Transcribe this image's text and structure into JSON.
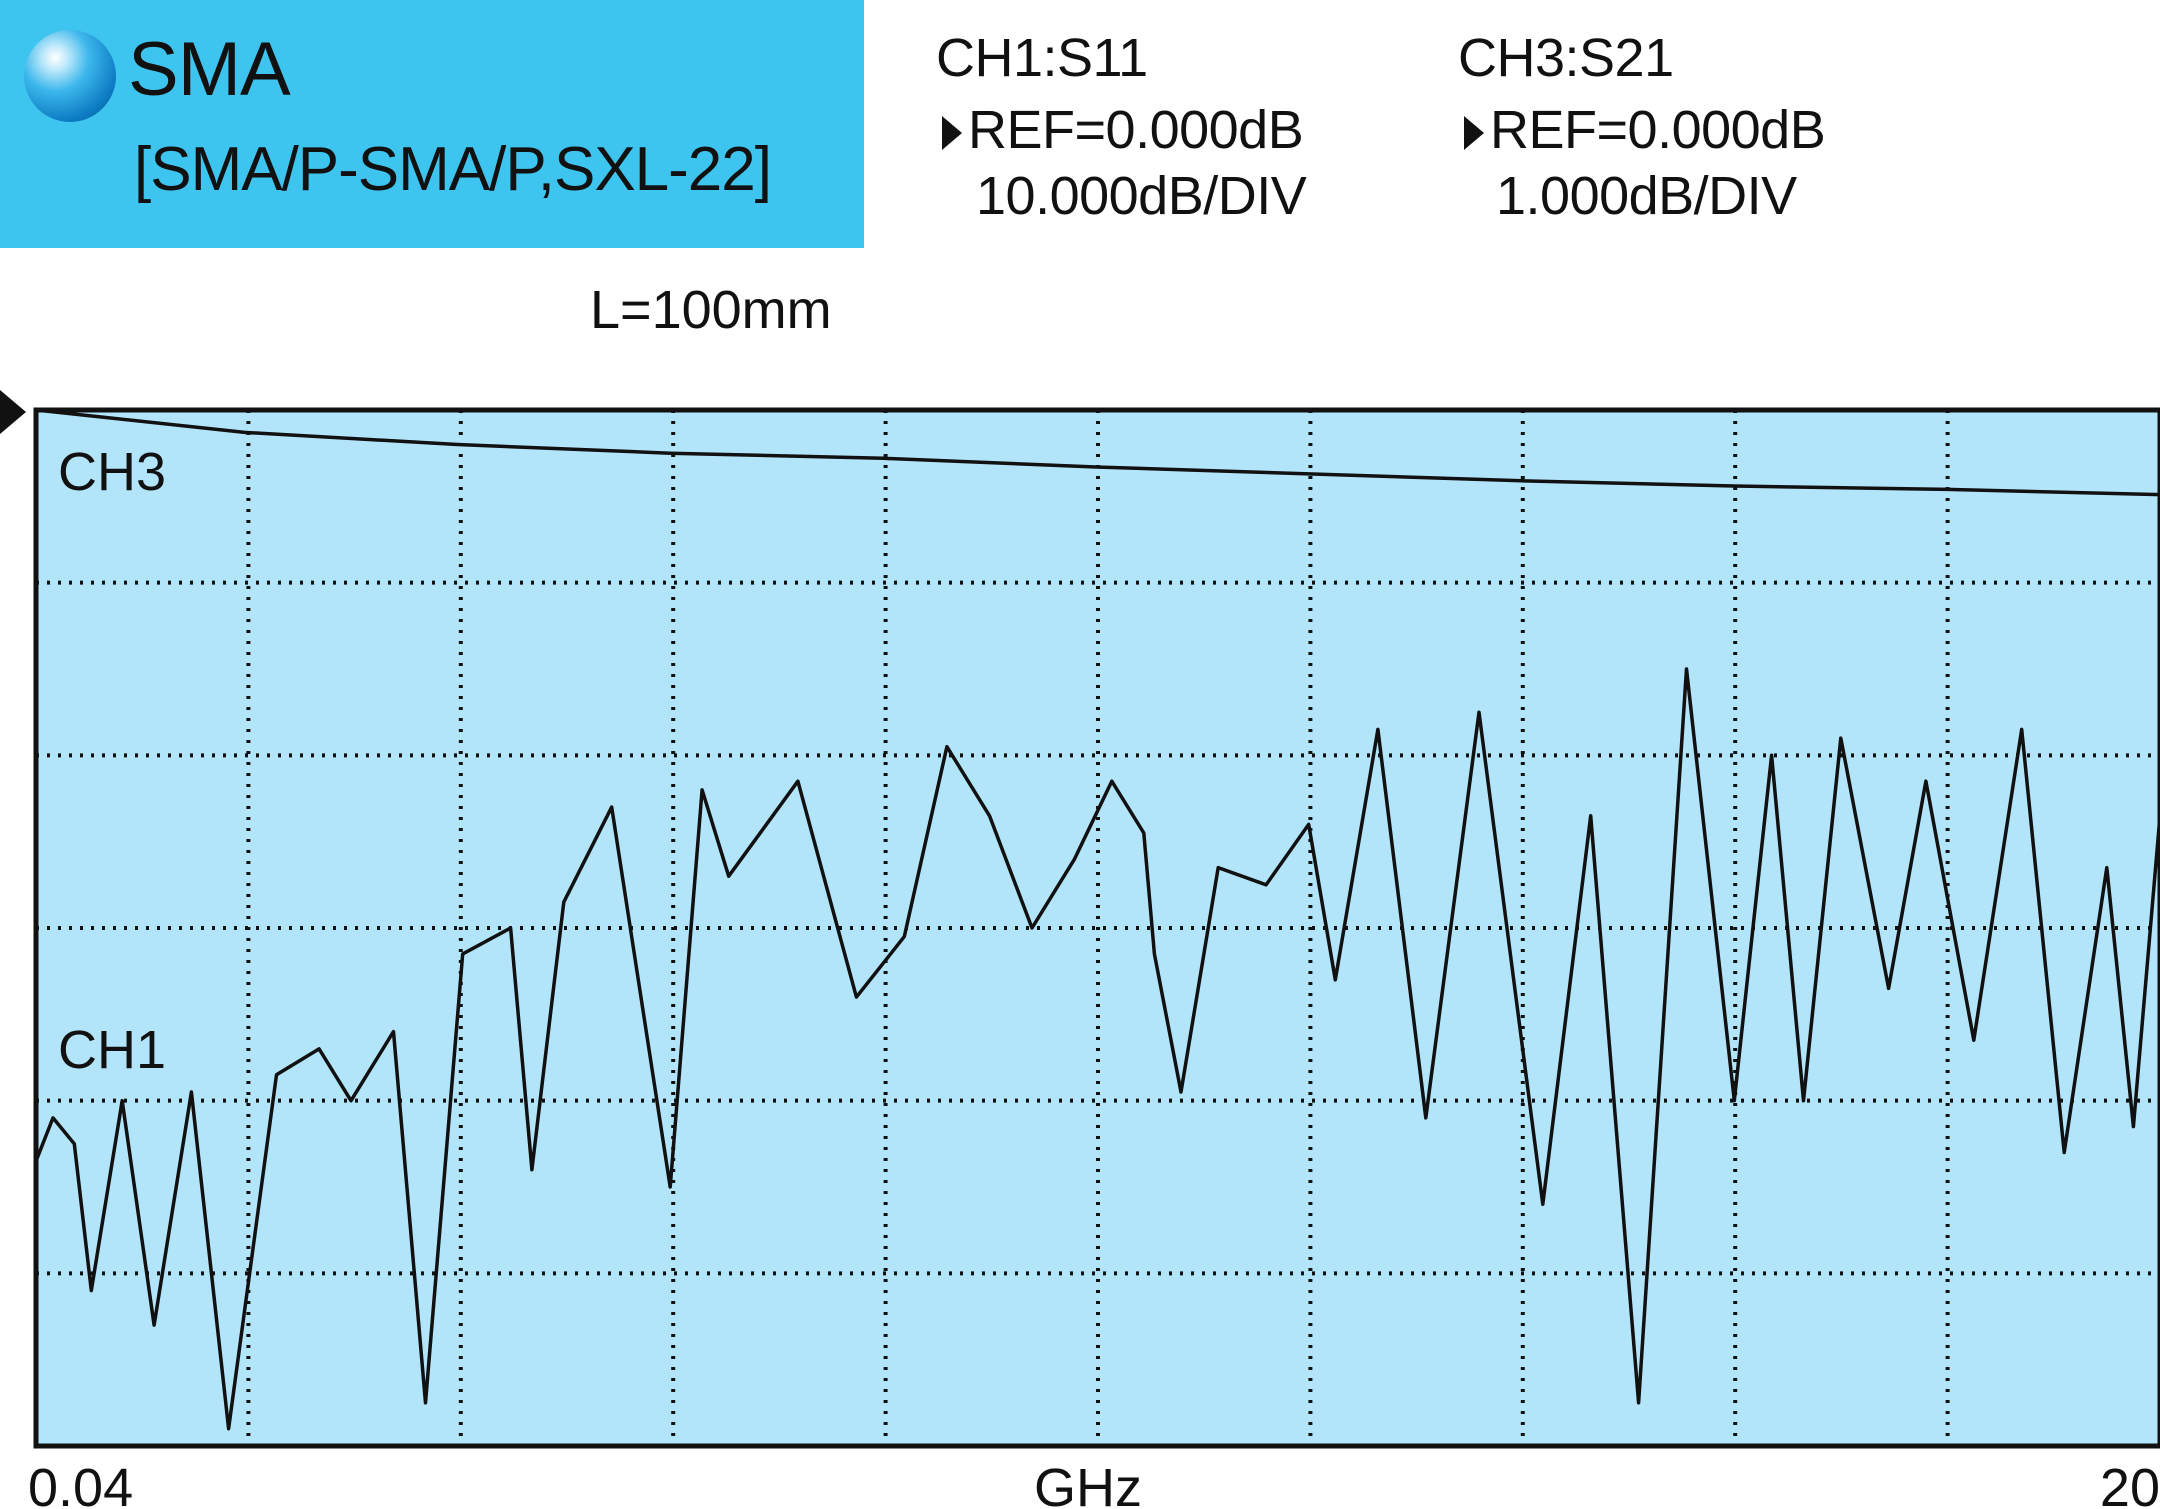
{
  "header": {
    "title": "SMA",
    "subtitle": "[SMA/P-SMA/P,SXL-22]",
    "length": "L=100mm",
    "channels": [
      {
        "name": "CH1:S11",
        "ref": "REF=0.000dB",
        "scale": "10.000dB/DIV"
      },
      {
        "name": "CH3:S21",
        "ref": "REF=0.000dB",
        "scale": "1.000dB/DIV"
      }
    ]
  },
  "colors": {
    "header_bg": "#3ec5ef",
    "plot_bg": "#b3e5fa",
    "trace": "#111111",
    "grid": "#111111"
  },
  "chart_data": {
    "type": "line",
    "title": "",
    "xlabel": "GHz",
    "x_ticks": [
      "0.04",
      "20"
    ],
    "xlim": [
      0.04,
      20
    ],
    "grid": true,
    "grid_divisions": {
      "x": 10,
      "y": 6
    },
    "series": [
      {
        "name": "CH3",
        "reference": "S21",
        "ref_dB": 0.0,
        "scale_dB_per_div": 1.0,
        "x": [
          0.04,
          2,
          4,
          6,
          8,
          10,
          12,
          14,
          16,
          18,
          20
        ],
        "y": [
          0.0,
          -0.13,
          -0.2,
          -0.25,
          -0.28,
          -0.33,
          -0.37,
          -0.41,
          -0.44,
          -0.46,
          -0.49
        ]
      },
      {
        "name": "CH1",
        "reference": "S11",
        "ref_dB": 0.0,
        "scale_dB_per_div": 10.0,
        "x": [
          0.04,
          0.2,
          0.4,
          0.56,
          0.85,
          1.15,
          1.5,
          1.85,
          2.3,
          2.7,
          3.0,
          3.4,
          3.7,
          4.05,
          4.5,
          4.7,
          5.0,
          5.45,
          6.0,
          6.3,
          6.55,
          7.2,
          7.75,
          8.2,
          8.6,
          9.0,
          9.4,
          9.8,
          10.15,
          10.45,
          10.55,
          10.8,
          11.15,
          11.6,
          12.0,
          12.25,
          12.65,
          13.1,
          13.6,
          14.2,
          14.65,
          15.1,
          15.55,
          16.0,
          16.35,
          16.65,
          17.0,
          17.45,
          17.8,
          18.25,
          18.7,
          19.1,
          19.5,
          19.75,
          20.0
        ],
        "y": [
          -43.5,
          -41.0,
          -42.5,
          -51.0,
          -40.0,
          -53.0,
          -39.5,
          -59.0,
          -38.5,
          -37.0,
          -40.0,
          -36.0,
          -57.5,
          -31.5,
          -30.0,
          -44.0,
          -28.5,
          -23.0,
          -45.0,
          -22.0,
          -27.0,
          -21.5,
          -34.0,
          -30.5,
          -19.5,
          -23.5,
          -30.0,
          -26.0,
          -21.5,
          -24.5,
          -31.5,
          -39.5,
          -26.5,
          -27.5,
          -24.0,
          -33.0,
          -18.5,
          -41.0,
          -17.5,
          -46.0,
          -23.5,
          -57.5,
          -15.0,
          -40.0,
          -20.0,
          -40.0,
          -19.0,
          -33.5,
          -21.5,
          -36.5,
          -18.5,
          -43.0,
          -26.5,
          -41.5,
          -23.5
        ]
      }
    ]
  }
}
